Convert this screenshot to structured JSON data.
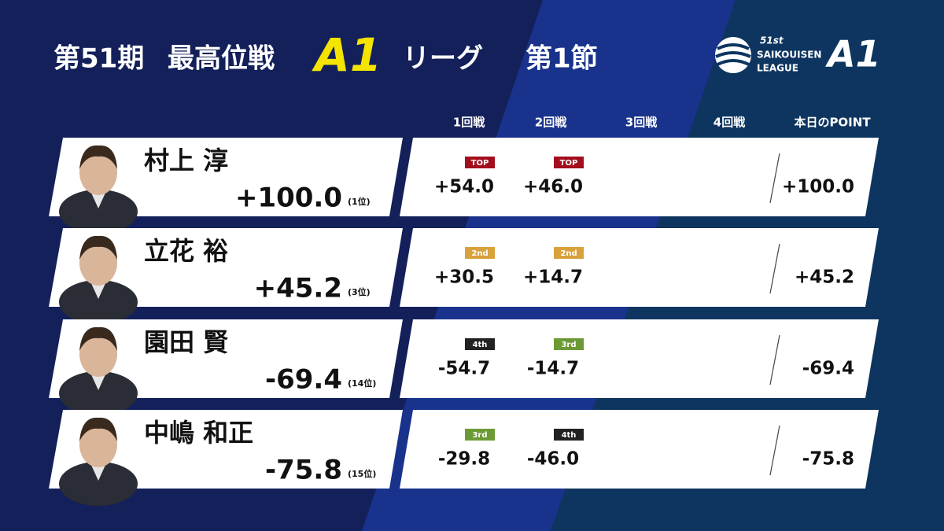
{
  "header": {
    "title": {
      "term": "第51期",
      "league": "最高位戦",
      "class": "A1",
      "suffix": "リーグ",
      "section": "第1節"
    },
    "logo": {
      "ordinal": "51st",
      "name": "SAIKOUISEN",
      "word": "LEAGUE",
      "class": "A1"
    }
  },
  "columns": [
    "1回戦",
    "2回戦",
    "3回戦",
    "4回戦",
    "本日のPOINT"
  ],
  "rows": [
    {
      "name": "村上 淳",
      "total": "+100.0",
      "rank": "(1位)",
      "point": "+100.0",
      "games": [
        {
          "badge": "TOP",
          "badge_color": "#a30d1d",
          "score": "+54.0"
        },
        {
          "badge": "TOP",
          "badge_color": "#a30d1d",
          "score": "+46.0"
        }
      ]
    },
    {
      "name": "立花 裕",
      "total": "+45.2",
      "rank": "(3位)",
      "point": "+45.2",
      "games": [
        {
          "badge": "2nd",
          "badge_color": "#d8a13b",
          "score": "+30.5"
        },
        {
          "badge": "2nd",
          "badge_color": "#d8a13b",
          "score": "+14.7"
        }
      ]
    },
    {
      "name": "園田 賢",
      "total": "-69.4",
      "rank": "(14位)",
      "point": "-69.4",
      "games": [
        {
          "badge": "4th",
          "badge_color": "#222222",
          "score": "-54.7"
        },
        {
          "badge": "3rd",
          "badge_color": "#6b9a35",
          "score": "-14.7"
        }
      ]
    },
    {
      "name": "中嶋 和正",
      "total": "-75.8",
      "rank": "(15位)",
      "point": "-75.8",
      "games": [
        {
          "badge": "3rd",
          "badge_color": "#6b9a35",
          "score": "-29.8"
        },
        {
          "badge": "4th",
          "badge_color": "#222222",
          "score": "-46.0"
        }
      ]
    }
  ]
}
